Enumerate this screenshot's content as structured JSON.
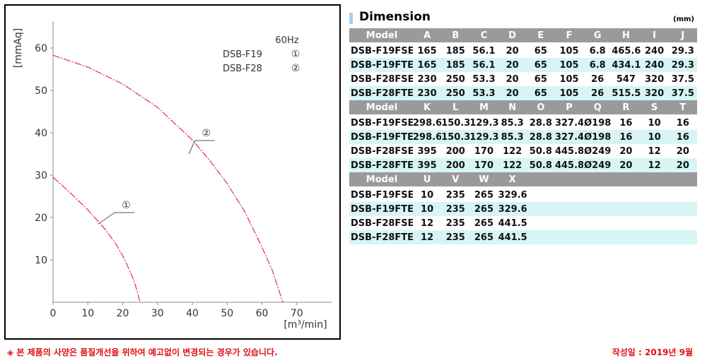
{
  "chart_data": {
    "type": "line",
    "ylabel": "[mmAq]",
    "xlabel": "[m³/min]",
    "xlim": [
      0,
      80
    ],
    "ylim": [
      0,
      65
    ],
    "x_ticks": [
      0,
      10,
      20,
      30,
      40,
      50,
      60,
      70
    ],
    "y_ticks": [
      10,
      20,
      30,
      40,
      50,
      60
    ],
    "grid": false,
    "legend": {
      "frequency": "60Hz",
      "entries": [
        {
          "model": "DSB-F19",
          "marker": "①"
        },
        {
          "model": "DSB-F28",
          "marker": "②"
        }
      ]
    },
    "series": [
      {
        "marker": "①",
        "color": "#e03050",
        "x": [
          0,
          5,
          10,
          15,
          18,
          20,
          22,
          23.5,
          24.5,
          25
        ],
        "y": [
          29.5,
          25.8,
          21.8,
          17.2,
          13.8,
          11,
          7.5,
          4.5,
          1.5,
          0
        ]
      },
      {
        "marker": "②",
        "color": "#e03050",
        "x": [
          0,
          10,
          20,
          30,
          40,
          45,
          50,
          55,
          60,
          63,
          65,
          66
        ],
        "y": [
          58.3,
          55.5,
          51.5,
          46,
          38.3,
          33.5,
          28,
          21.5,
          13,
          7.5,
          2.5,
          0
        ]
      }
    ],
    "annotations": [
      {
        "text": "①",
        "x": 21,
        "y": 23.5
      },
      {
        "text": "②",
        "x": 44,
        "y": 40.5
      }
    ]
  },
  "dimension": {
    "title": "Dimension",
    "unit": "(mm)",
    "blocks": [
      {
        "headers": [
          "Model",
          "A",
          "B",
          "C",
          "D",
          "E",
          "F",
          "G",
          "H",
          "I",
          "J"
        ],
        "rows": [
          [
            "DSB-F19FSE",
            "165",
            "185",
            "56.1",
            "20",
            "65",
            "105",
            "6.8",
            "465.6",
            "240",
            "29.3"
          ],
          [
            "DSB-F19FTE",
            "165",
            "185",
            "56.1",
            "20",
            "65",
            "105",
            "6.8",
            "434.1",
            "240",
            "29.3"
          ],
          [
            "DSB-F28FSE",
            "230",
            "250",
            "53.3",
            "20",
            "65",
            "105",
            "26",
            "547",
            "320",
            "37.5"
          ],
          [
            "DSB-F28FTE",
            "230",
            "250",
            "53.3",
            "20",
            "65",
            "105",
            "26",
            "515.5",
            "320",
            "37.5"
          ]
        ]
      },
      {
        "headers": [
          "Model",
          "K",
          "L",
          "M",
          "N",
          "O",
          "P",
          "Q",
          "R",
          "S",
          "T"
        ],
        "rows": [
          [
            "DSB-F19FSE",
            "298.6",
            "150.3",
            "129.3",
            "85.3",
            "28.8",
            "327.4",
            "Ø198",
            "16",
            "10",
            "16"
          ],
          [
            "DSB-F19FTE",
            "298.6",
            "150.3",
            "129.3",
            "85.3",
            "28.8",
            "327.4",
            "Ø198",
            "16",
            "10",
            "16"
          ],
          [
            "DSB-F28FSE",
            "395",
            "200",
            "170",
            "122",
            "50.8",
            "445.8",
            "Ø249",
            "20",
            "12",
            "20"
          ],
          [
            "DSB-F28FTE",
            "395",
            "200",
            "170",
            "122",
            "50.8",
            "445.8",
            "Ø249",
            "20",
            "12",
            "20"
          ]
        ]
      },
      {
        "headers": [
          "Model",
          "U",
          "V",
          "W",
          "X",
          "",
          "",
          "",
          "",
          "",
          ""
        ],
        "rows": [
          [
            "DSB-F19FSE",
            "10",
            "235",
            "265",
            "329.6",
            "",
            "",
            "",
            "",
            "",
            ""
          ],
          [
            "DSB-F19FTE",
            "10",
            "235",
            "265",
            "329.6",
            "",
            "",
            "",
            "",
            "",
            ""
          ],
          [
            "DSB-F28FSE",
            "12",
            "235",
            "265",
            "441.5",
            "",
            "",
            "",
            "",
            "",
            ""
          ],
          [
            "DSB-F28FTE",
            "12",
            "235",
            "265",
            "441.5",
            "",
            "",
            "",
            "",
            "",
            ""
          ]
        ]
      }
    ]
  },
  "footer": {
    "notice": "◈ 본 제품의 사양은 품질개선을 위하여 예고없이 변경되는 경우가 있습니다.",
    "date": "작성일 : 2019년 9월"
  }
}
